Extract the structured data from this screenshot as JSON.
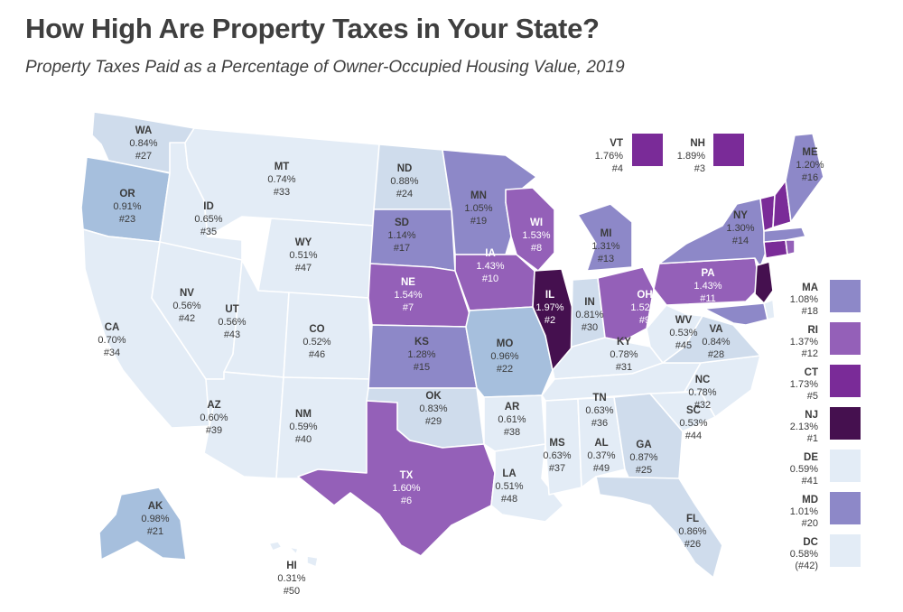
{
  "title": "How High Are Property Taxes in Your State?",
  "subtitle": "Property Taxes Paid as a Percentage of Owner-Occupied Housing Value, 2019",
  "colors": {
    "c1": "#e3ecf6",
    "c2": "#cfdcec",
    "c3": "#a6bfdd",
    "c4": "#8d88c8",
    "c5": "#9460b8",
    "c6": "#7a2b98",
    "c7": "#45104f",
    "label_dark": "#3b3b3b",
    "label_light": "#ffffff"
  },
  "states": {
    "WA": {
      "name": "WA",
      "rate": "0.84%",
      "rank": "#27"
    },
    "OR": {
      "name": "OR",
      "rate": "0.91%",
      "rank": "#23"
    },
    "CA": {
      "name": "CA",
      "rate": "0.70%",
      "rank": "#34"
    },
    "ID": {
      "name": "ID",
      "rate": "0.65%",
      "rank": "#35"
    },
    "NV": {
      "name": "NV",
      "rate": "0.56%",
      "rank": "#42"
    },
    "MT": {
      "name": "MT",
      "rate": "0.74%",
      "rank": "#33"
    },
    "WY": {
      "name": "WY",
      "rate": "0.51%",
      "rank": "#47"
    },
    "UT": {
      "name": "UT",
      "rate": "0.56%",
      "rank": "#43"
    },
    "AZ": {
      "name": "AZ",
      "rate": "0.60%",
      "rank": "#39"
    },
    "CO": {
      "name": "CO",
      "rate": "0.52%",
      "rank": "#46"
    },
    "NM": {
      "name": "NM",
      "rate": "0.59%",
      "rank": "#40"
    },
    "ND": {
      "name": "ND",
      "rate": "0.88%",
      "rank": "#24"
    },
    "SD": {
      "name": "SD",
      "rate": "1.14%",
      "rank": "#17"
    },
    "NE": {
      "name": "NE",
      "rate": "1.54%",
      "rank": "#7"
    },
    "KS": {
      "name": "KS",
      "rate": "1.28%",
      "rank": "#15"
    },
    "OK": {
      "name": "OK",
      "rate": "0.83%",
      "rank": "#29"
    },
    "TX": {
      "name": "TX",
      "rate": "1.60%",
      "rank": "#6"
    },
    "MN": {
      "name": "MN",
      "rate": "1.05%",
      "rank": "#19"
    },
    "IA": {
      "name": "IA",
      "rate": "1.43%",
      "rank": "#10"
    },
    "MO": {
      "name": "MO",
      "rate": "0.96%",
      "rank": "#22"
    },
    "AR": {
      "name": "AR",
      "rate": "0.61%",
      "rank": "#38"
    },
    "LA": {
      "name": "LA",
      "rate": "0.51%",
      "rank": "#48"
    },
    "WI": {
      "name": "WI",
      "rate": "1.53%",
      "rank": "#8"
    },
    "IL": {
      "name": "IL",
      "rate": "1.97%",
      "rank": "#2"
    },
    "MI": {
      "name": "MI",
      "rate": "1.31%",
      "rank": "#13"
    },
    "IN": {
      "name": "IN",
      "rate": "0.81%",
      "rank": "#30"
    },
    "OH": {
      "name": "OH",
      "rate": "1.52%",
      "rank": "#9"
    },
    "KY": {
      "name": "KY",
      "rate": "0.78%",
      "rank": "#31"
    },
    "TN": {
      "name": "TN",
      "rate": "0.63%",
      "rank": "#36"
    },
    "MS": {
      "name": "MS",
      "rate": "0.63%",
      "rank": "#37"
    },
    "AL": {
      "name": "AL",
      "rate": "0.37%",
      "rank": "#49"
    },
    "GA": {
      "name": "GA",
      "rate": "0.87%",
      "rank": "#25"
    },
    "FL": {
      "name": "FL",
      "rate": "0.86%",
      "rank": "#26"
    },
    "SC": {
      "name": "SC",
      "rate": "0.53%",
      "rank": "#44"
    },
    "NC": {
      "name": "NC",
      "rate": "0.78%",
      "rank": "#32"
    },
    "VA": {
      "name": "VA",
      "rate": "0.84%",
      "rank": "#28"
    },
    "WV": {
      "name": "WV",
      "rate": "0.53%",
      "rank": "#45"
    },
    "PA": {
      "name": "PA",
      "rate": "1.43%",
      "rank": "#11"
    },
    "NY": {
      "name": "NY",
      "rate": "1.30%",
      "rank": "#14"
    },
    "ME": {
      "name": "ME",
      "rate": "1.20%",
      "rank": "#16"
    },
    "AK": {
      "name": "AK",
      "rate": "0.98%",
      "rank": "#21"
    },
    "HI": {
      "name": "HI",
      "rate": "0.31%",
      "rank": "#50"
    }
  },
  "callouts": {
    "VT": {
      "name": "VT",
      "rate": "1.76%",
      "rank": "#4"
    },
    "NH": {
      "name": "NH",
      "rate": "1.89%",
      "rank": "#3"
    }
  },
  "sidebar": [
    {
      "name": "MA",
      "rate": "1.08%",
      "rank": "#18"
    },
    {
      "name": "RI",
      "rate": "1.37%",
      "rank": "#12"
    },
    {
      "name": "CT",
      "rate": "1.73%",
      "rank": "#5"
    },
    {
      "name": "NJ",
      "rate": "2.13%",
      "rank": "#1"
    },
    {
      "name": "DE",
      "rate": "0.59%",
      "rank": "#41"
    },
    {
      "name": "MD",
      "rate": "1.01%",
      "rank": "#20"
    },
    {
      "name": "DC",
      "rate": "0.58%",
      "rank": "(#42)"
    }
  ]
}
